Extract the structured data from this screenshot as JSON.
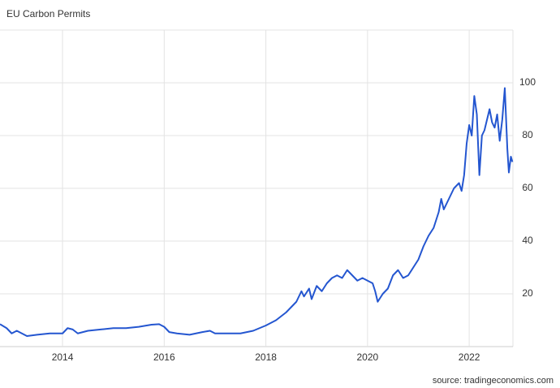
{
  "chart_data": {
    "type": "line",
    "title": "EU Carbon Permits",
    "source": "source: tradingeconomics.com",
    "x": [
      2012.77,
      2012.9,
      2013.0,
      2013.1,
      2013.3,
      2013.5,
      2013.75,
      2014.0,
      2014.1,
      2014.2,
      2014.3,
      2014.5,
      2014.75,
      2015.0,
      2015.25,
      2015.5,
      2015.75,
      2015.9,
      2016.0,
      2016.1,
      2016.25,
      2016.5,
      2016.75,
      2016.9,
      2017.0,
      2017.25,
      2017.5,
      2017.75,
      2018.0,
      2018.2,
      2018.4,
      2018.5,
      2018.6,
      2018.7,
      2018.75,
      2018.85,
      2018.9,
      2019.0,
      2019.1,
      2019.2,
      2019.3,
      2019.4,
      2019.5,
      2019.6,
      2019.7,
      2019.8,
      2019.9,
      2020.0,
      2020.1,
      2020.15,
      2020.2,
      2020.3,
      2020.4,
      2020.5,
      2020.6,
      2020.7,
      2020.8,
      2020.9,
      2021.0,
      2021.1,
      2021.2,
      2021.3,
      2021.4,
      2021.45,
      2021.5,
      2021.6,
      2021.7,
      2021.8,
      2021.85,
      2021.9,
      2021.95,
      2022.0,
      2022.05,
      2022.1,
      2022.15,
      2022.2,
      2022.25,
      2022.3,
      2022.4,
      2022.45,
      2022.5,
      2022.55,
      2022.6,
      2022.65,
      2022.7,
      2022.75,
      2022.78,
      2022.82,
      2022.85
    ],
    "series": [
      {
        "name": "EU Carbon Permits",
        "color": "#2456d0",
        "values": [
          8.5,
          7,
          5,
          6,
          4,
          4.5,
          5,
          5,
          7,
          6.5,
          5,
          6,
          6.5,
          7,
          7,
          7.5,
          8.3,
          8.5,
          7.5,
          5.5,
          5,
          4.5,
          5.5,
          6,
          5,
          5,
          5,
          6,
          8,
          10,
          13,
          15,
          17,
          21,
          19,
          22,
          18,
          23,
          21,
          24,
          26,
          27,
          26,
          29,
          27,
          25,
          26,
          25,
          24,
          21,
          17,
          20,
          22,
          27,
          29,
          26,
          27,
          30,
          33,
          38,
          42,
          45,
          51,
          56,
          52,
          56,
          60,
          62,
          59,
          65,
          77,
          84,
          80,
          95,
          88,
          65,
          80,
          82,
          90,
          85,
          83,
          88,
          78,
          86,
          98,
          75,
          66,
          72,
          70
        ]
      }
    ],
    "xlim": [
      2012.77,
      2022.86
    ],
    "ylim": [
      0,
      120
    ],
    "xticks": [
      2014,
      2016,
      2018,
      2020,
      2022
    ],
    "yticks": [
      20,
      40,
      60,
      80,
      100
    ],
    "grid": true
  }
}
